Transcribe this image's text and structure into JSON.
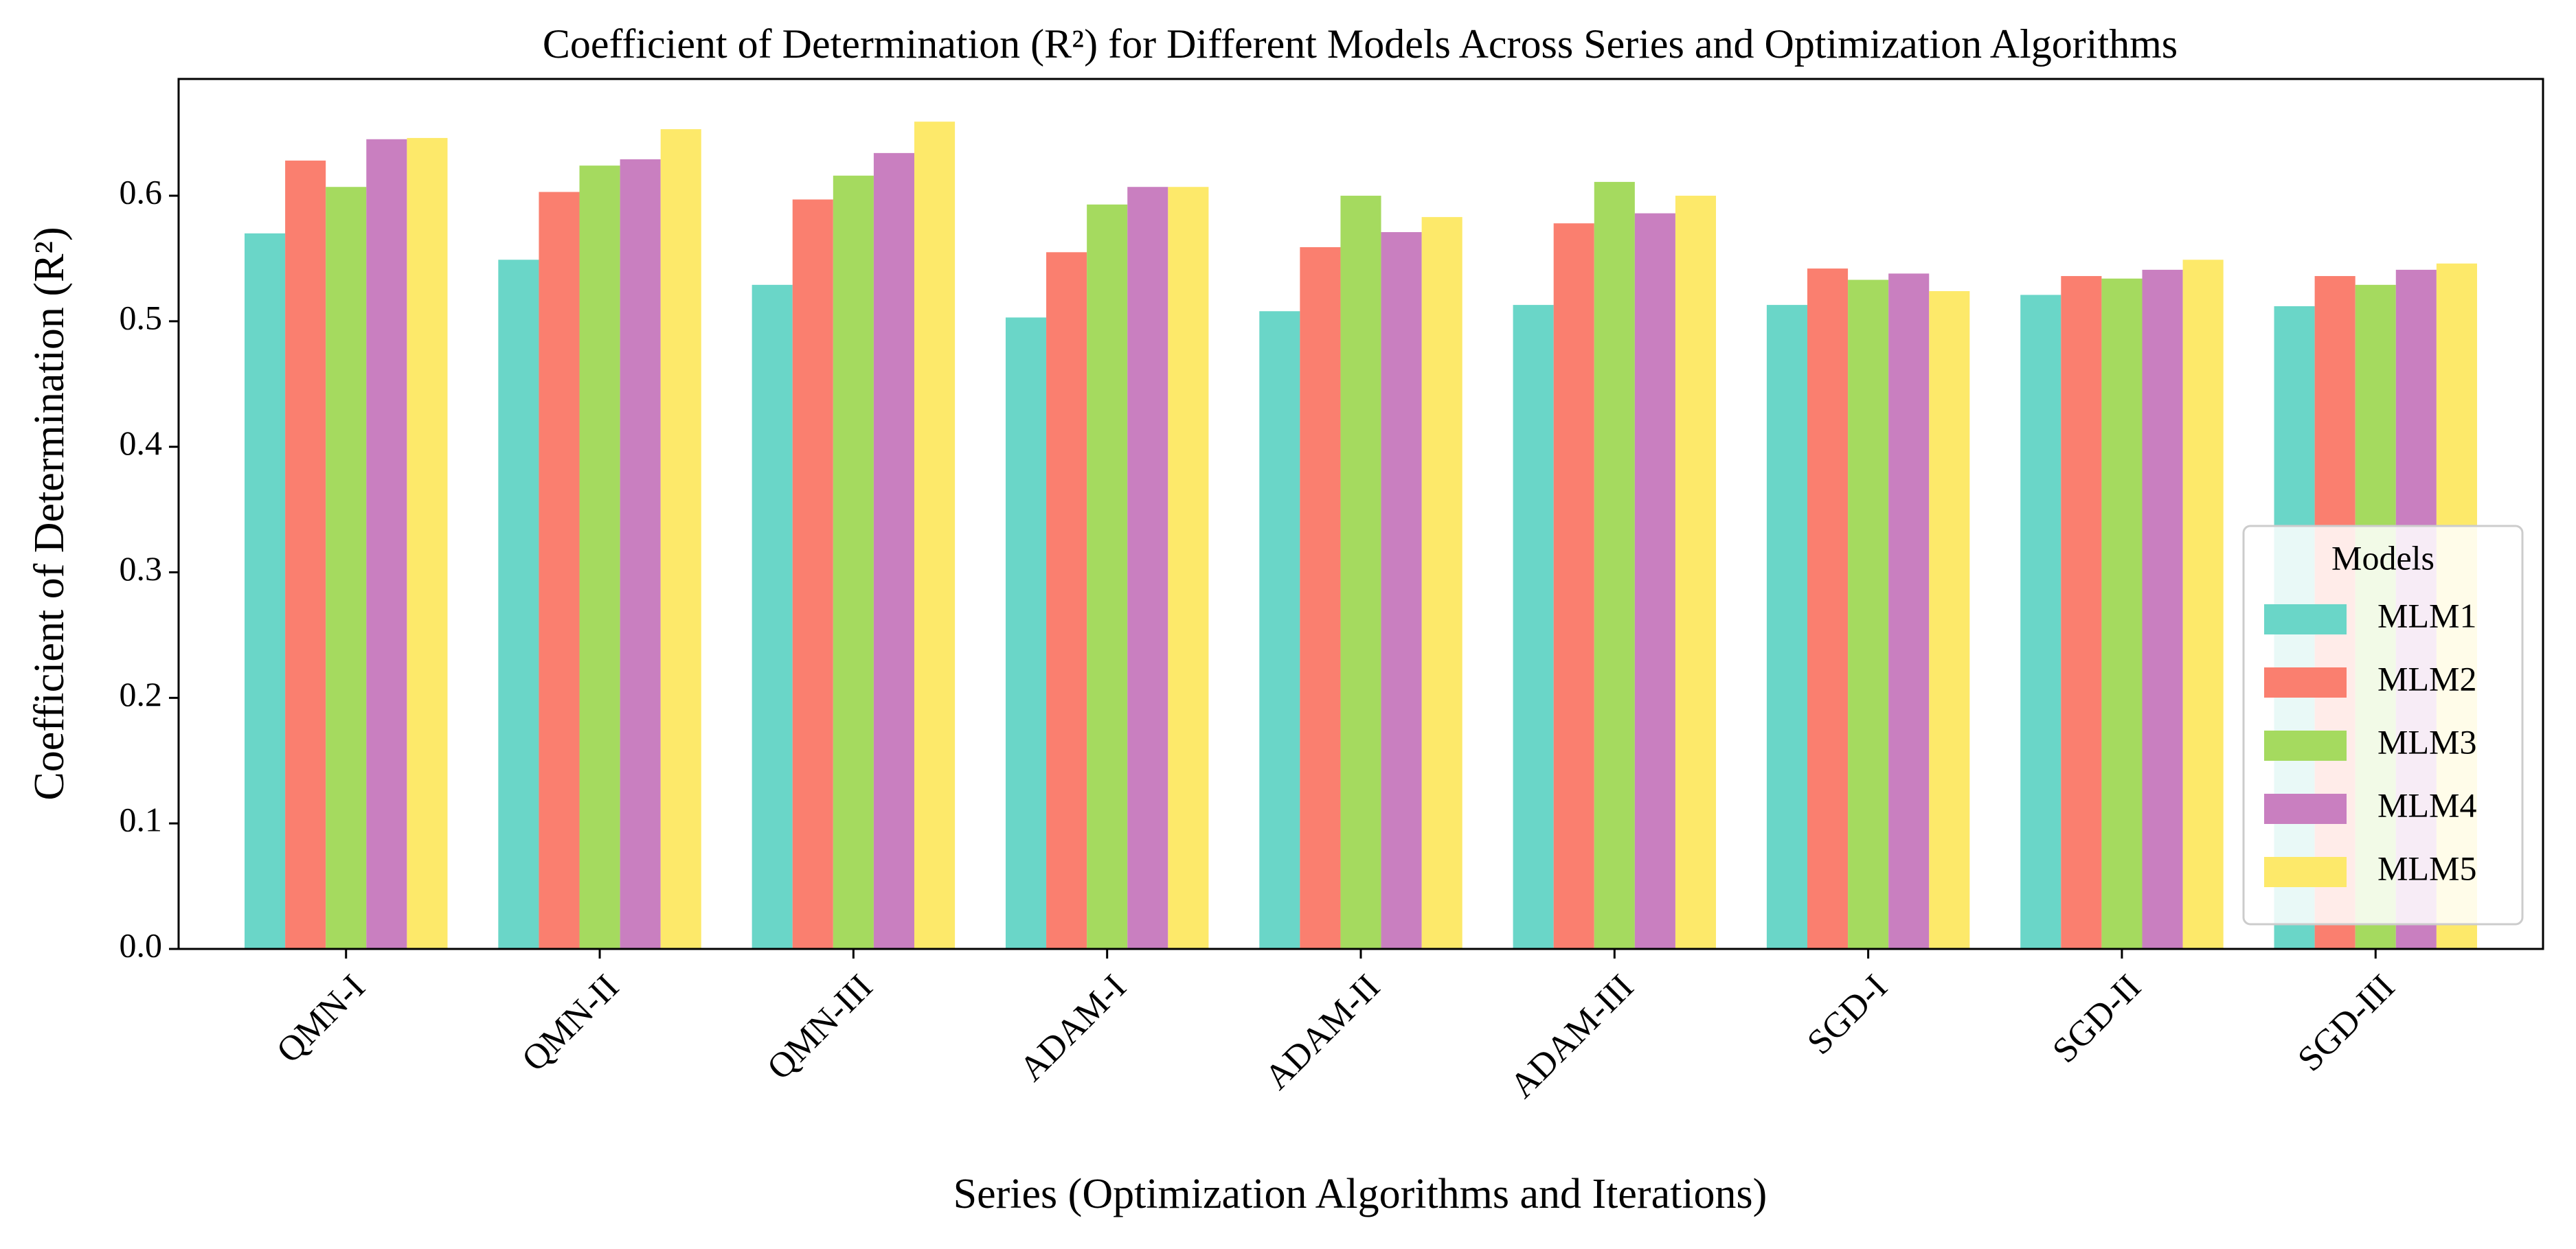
{
  "chart_data": {
    "type": "bar",
    "title": "Coefficient of Determination (R²) for Different Models Across Series and Optimization Algorithms",
    "x_label": "Series (Optimization Algorithms and Iterations)",
    "y_label": "Coefficient of Determination (R²)",
    "categories": [
      "QMN-I",
      "QMN-II",
      "QMN-III",
      "ADAM-I",
      "ADAM-II",
      "ADAM-III",
      "SGD-I",
      "SGD-II",
      "SGD-III"
    ],
    "series": [
      {
        "name": "MLM1",
        "color": "#6ad6c8",
        "values": [
          0.57,
          0.549,
          0.529,
          0.503,
          0.508,
          0.513,
          0.513,
          0.521,
          0.512
        ]
      },
      {
        "name": "MLM2",
        "color": "#fa7f6f",
        "values": [
          0.628,
          0.603,
          0.597,
          0.555,
          0.559,
          0.578,
          0.542,
          0.536,
          0.536
        ]
      },
      {
        "name": "MLM3",
        "color": "#a5da5f",
        "values": [
          0.607,
          0.624,
          0.616,
          0.593,
          0.6,
          0.611,
          0.533,
          0.534,
          0.529
        ]
      },
      {
        "name": "MLM4",
        "color": "#c97fc0",
        "values": [
          0.645,
          0.629,
          0.634,
          0.607,
          0.571,
          0.586,
          0.538,
          0.541,
          0.541
        ]
      },
      {
        "name": "MLM5",
        "color": "#fde96a",
        "values": [
          0.646,
          0.653,
          0.659,
          0.607,
          0.583,
          0.6,
          0.524,
          0.549,
          0.546
        ]
      }
    ],
    "legend_title": "Models",
    "legend_position": "lower right",
    "ylim": [
      0,
      0.693
    ],
    "yticks": [
      {
        "value": 0,
        "label": "0.0"
      },
      0.1,
      0.2,
      0.3,
      0.4,
      0.5,
      0.6
    ]
  }
}
